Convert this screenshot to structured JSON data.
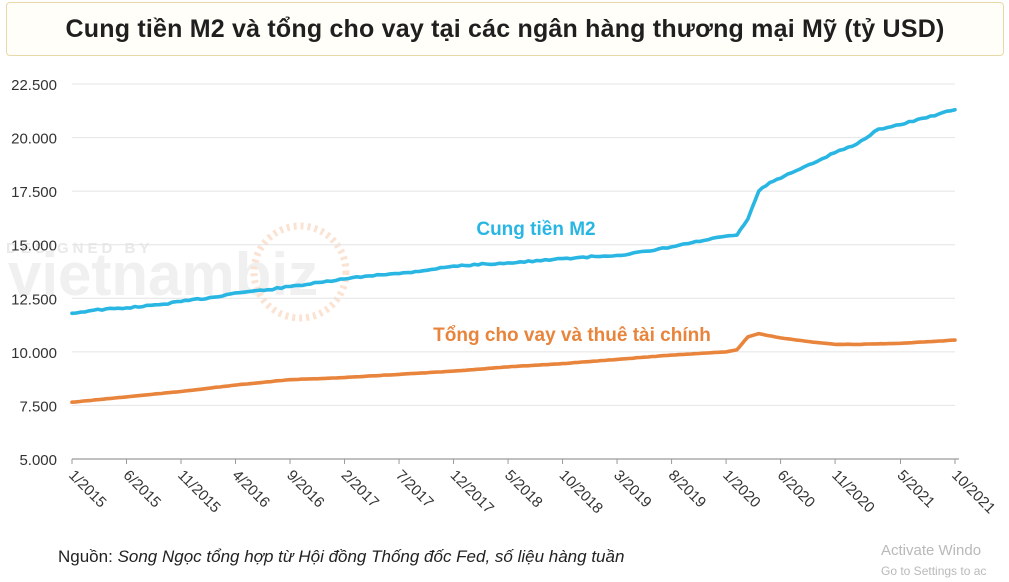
{
  "header": {
    "title": "Cung tiền M2 và tổng cho vay tại các ngân hàng thương mại Mỹ (tỷ USD)"
  },
  "watermark": {
    "designed_by": "DESIGNED BY",
    "brand": "vietnambiz"
  },
  "footer": {
    "source_label": "Nguồn:",
    "source_text": "Song Ngọc tổng hợp từ Hội đồng Thống đốc Fed, số liệu hàng tuần"
  },
  "os_overlay": {
    "line1": "Activate Windo",
    "line2": "Go to Settings to ac"
  },
  "colors": {
    "m2": "#29b6e3",
    "loans": "#e8843c",
    "grid": "#e4e4e4",
    "axis": "#9a9a9a"
  },
  "chart_data": {
    "type": "line",
    "title": "Cung tiền M2 và tổng cho vay tại các ngân hàng thương mại Mỹ (tỷ USD)",
    "xlabel": "",
    "ylabel": "",
    "ylim": [
      5000,
      22500
    ],
    "y_ticks": [
      5000,
      7500,
      10000,
      12500,
      15000,
      17500,
      20000,
      22500
    ],
    "y_tick_labels": [
      "5.000",
      "7.500",
      "10.000",
      "12.500",
      "15.000",
      "17.500",
      "20.000",
      "22.500"
    ],
    "x_range": [
      "2015-01",
      "2021-10"
    ],
    "x_tick_labels": [
      "1/2015",
      "6/2015",
      "11/2015",
      "4/2016",
      "9/2016",
      "2/2017",
      "7/2017",
      "12/2017",
      "5/2018",
      "10/2018",
      "3/2019",
      "8/2019",
      "1/2020",
      "6/2020",
      "11/2020",
      "5/2021",
      "10/2021"
    ],
    "grid": "horizontal",
    "series": [
      {
        "name": "Cung tiền M2",
        "x": [
          "2015-01",
          "2015-03",
          "2015-06",
          "2015-09",
          "2015-11",
          "2016-02",
          "2016-04",
          "2016-07",
          "2016-09",
          "2016-12",
          "2017-02",
          "2017-05",
          "2017-07",
          "2017-10",
          "2017-12",
          "2018-03",
          "2018-05",
          "2018-08",
          "2018-10",
          "2019-01",
          "2019-03",
          "2019-06",
          "2019-08",
          "2019-11",
          "2020-01",
          "2020-02",
          "2020-03",
          "2020-04",
          "2020-05",
          "2020-06",
          "2020-07",
          "2020-09",
          "2020-11",
          "2021-01",
          "2021-03",
          "2021-05",
          "2021-07",
          "2021-10"
        ],
        "values": [
          11800,
          11950,
          12050,
          12200,
          12350,
          12550,
          12750,
          12900,
          13050,
          13250,
          13400,
          13600,
          13650,
          13850,
          14000,
          14100,
          14150,
          14250,
          14350,
          14450,
          14500,
          14700,
          14900,
          15200,
          15400,
          15450,
          16200,
          17500,
          17900,
          18100,
          18350,
          18800,
          19300,
          19700,
          20400,
          20600,
          20900,
          21300
        ]
      },
      {
        "name": "Tổng cho vay và thuê tài chính",
        "x": [
          "2015-01",
          "2015-06",
          "2015-11",
          "2016-04",
          "2016-09",
          "2017-02",
          "2017-07",
          "2017-12",
          "2018-05",
          "2018-10",
          "2019-03",
          "2019-08",
          "2020-01",
          "2020-02",
          "2020-03",
          "2020-04",
          "2020-06",
          "2020-09",
          "2020-11",
          "2021-01",
          "2021-05",
          "2021-10"
        ],
        "values": [
          7650,
          7900,
          8150,
          8450,
          8700,
          8800,
          8950,
          9100,
          9300,
          9450,
          9650,
          9850,
          10000,
          10100,
          10700,
          10850,
          10650,
          10450,
          10350,
          10350,
          10400,
          10550
        ]
      }
    ],
    "annotations": [
      {
        "text": "Cung tiền M2",
        "series": "Cung tiền M2"
      },
      {
        "text": "Tổng cho vay và thuê tài chính",
        "series": "Tổng cho vay và thuê tài chính"
      }
    ]
  }
}
